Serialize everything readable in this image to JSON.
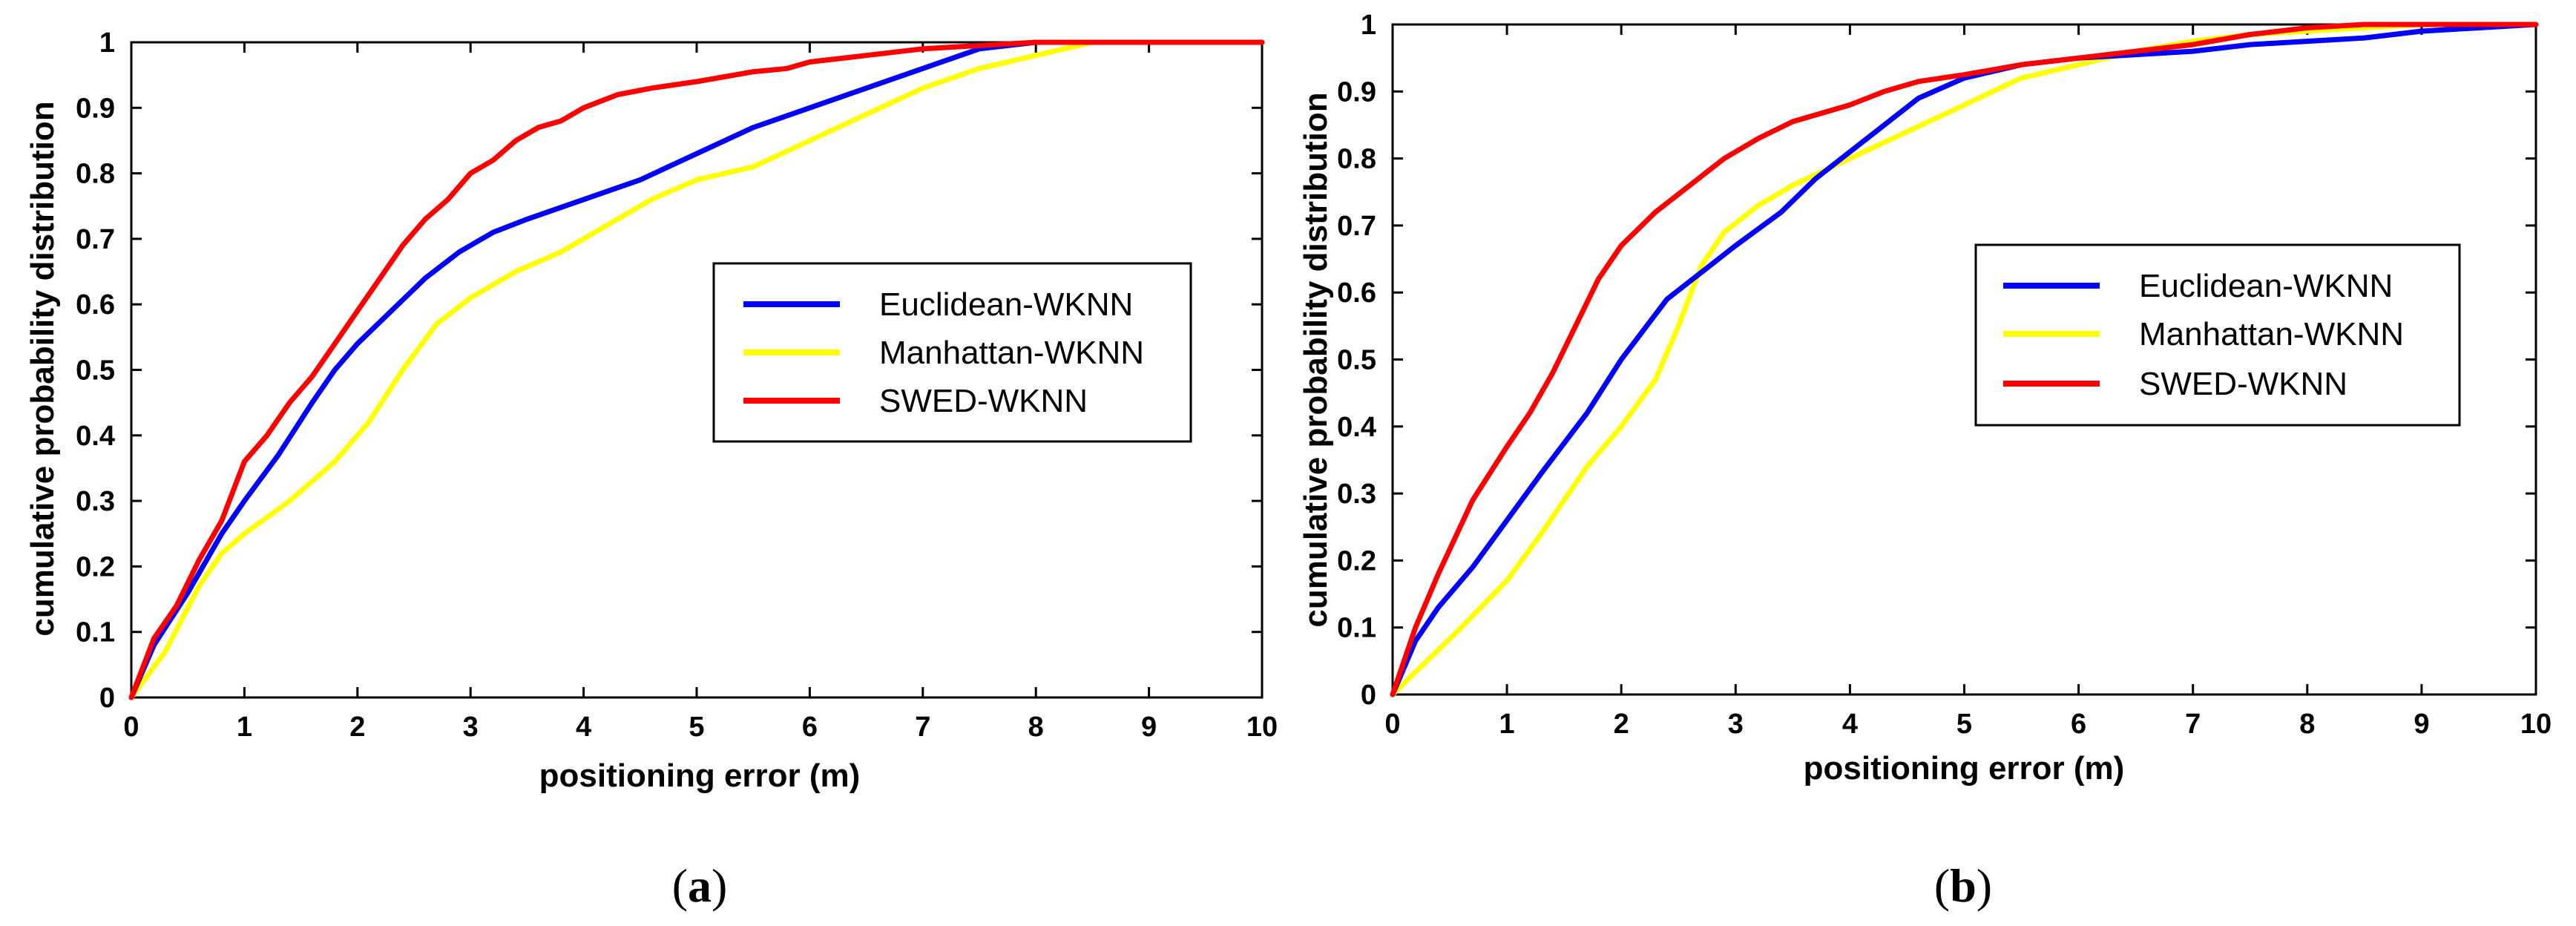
{
  "chart_data": [
    {
      "type": "line",
      "panel_label": "a",
      "title": "",
      "xlabel": "positioning error (m)",
      "ylabel": "cumulative probability distribution",
      "xlim": [
        0,
        10
      ],
      "ylim": [
        0,
        1
      ],
      "xticks": [
        "0",
        "1",
        "2",
        "3",
        "4",
        "5",
        "6",
        "7",
        "8",
        "9",
        "10"
      ],
      "yticks": [
        "0",
        "0.1",
        "0.2",
        "0.3",
        "0.4",
        "0.5",
        "0.6",
        "0.7",
        "0.8",
        "0.9",
        "1"
      ],
      "grid": false,
      "legend_position": "center-right",
      "series": [
        {
          "name": "Euclidean-WKNN",
          "color": "#0000ff",
          "x": [
            0,
            0.2,
            0.5,
            0.8,
            1.0,
            1.3,
            1.6,
            1.8,
            2.0,
            2.3,
            2.6,
            2.9,
            3.2,
            3.5,
            4.0,
            4.5,
            5.0,
            5.5,
            6.0,
            6.5,
            7.0,
            7.5,
            8.0,
            8.5,
            9.0,
            10.0
          ],
          "y": [
            0,
            0.08,
            0.16,
            0.25,
            0.3,
            0.37,
            0.45,
            0.5,
            0.54,
            0.59,
            0.64,
            0.68,
            0.71,
            0.73,
            0.76,
            0.79,
            0.83,
            0.87,
            0.9,
            0.93,
            0.96,
            0.99,
            1.0,
            1.0,
            1.0,
            1.0
          ]
        },
        {
          "name": "Manhattan-WKNN",
          "color": "#ffff00",
          "x": [
            0,
            0.3,
            0.6,
            0.8,
            1.0,
            1.4,
            1.8,
            2.1,
            2.4,
            2.7,
            3.0,
            3.4,
            3.8,
            4.2,
            4.6,
            5.0,
            5.5,
            6.0,
            6.5,
            7.0,
            7.5,
            8.0,
            8.5,
            9.0,
            10.0
          ],
          "y": [
            0,
            0.07,
            0.17,
            0.22,
            0.25,
            0.3,
            0.36,
            0.42,
            0.5,
            0.57,
            0.61,
            0.65,
            0.68,
            0.72,
            0.76,
            0.79,
            0.81,
            0.85,
            0.89,
            0.93,
            0.96,
            0.98,
            1.0,
            1.0,
            1.0
          ]
        },
        {
          "name": "SWED-WKNN",
          "color": "#ff0000",
          "x": [
            0,
            0.2,
            0.4,
            0.6,
            0.8,
            1.0,
            1.2,
            1.4,
            1.6,
            1.8,
            2.0,
            2.2,
            2.4,
            2.6,
            2.8,
            3.0,
            3.2,
            3.4,
            3.6,
            3.8,
            4.0,
            4.3,
            4.6,
            5.0,
            5.5,
            5.8,
            6.0,
            6.5,
            7.0,
            7.5,
            8.0,
            10.0
          ],
          "y": [
            0,
            0.09,
            0.14,
            0.21,
            0.27,
            0.36,
            0.4,
            0.45,
            0.49,
            0.54,
            0.59,
            0.64,
            0.69,
            0.73,
            0.76,
            0.8,
            0.82,
            0.85,
            0.87,
            0.88,
            0.9,
            0.92,
            0.93,
            0.94,
            0.955,
            0.96,
            0.97,
            0.98,
            0.99,
            0.995,
            1.0,
            1.0
          ]
        }
      ]
    },
    {
      "type": "line",
      "panel_label": "b",
      "title": "",
      "xlabel": "positioning error (m)",
      "ylabel": "cumulative probability distribution",
      "xlim": [
        0,
        10
      ],
      "ylim": [
        0,
        1
      ],
      "xticks": [
        "0",
        "1",
        "2",
        "3",
        "4",
        "5",
        "6",
        "7",
        "8",
        "9",
        "10"
      ],
      "yticks": [
        "0",
        "0.1",
        "0.2",
        "0.3",
        "0.4",
        "0.5",
        "0.6",
        "0.7",
        "0.8",
        "0.9",
        "1"
      ],
      "grid": false,
      "legend_position": "center-right",
      "series": [
        {
          "name": "Euclidean-WKNN",
          "color": "#0000ff",
          "x": [
            0,
            0.2,
            0.4,
            0.7,
            1.0,
            1.3,
            1.7,
            2.0,
            2.4,
            2.7,
            3.0,
            3.4,
            3.7,
            4.0,
            4.3,
            4.6,
            5.0,
            5.5,
            6.0,
            6.5,
            7.0,
            7.5,
            8.0,
            8.5,
            9.0,
            9.5,
            10.0
          ],
          "y": [
            0,
            0.08,
            0.13,
            0.19,
            0.26,
            0.33,
            0.42,
            0.5,
            0.59,
            0.63,
            0.67,
            0.72,
            0.77,
            0.81,
            0.85,
            0.89,
            0.92,
            0.94,
            0.95,
            0.955,
            0.96,
            0.97,
            0.975,
            0.98,
            0.99,
            0.995,
            1.0
          ]
        },
        {
          "name": "Manhattan-WKNN",
          "color": "#ffff00",
          "x": [
            0,
            0.3,
            0.6,
            1.0,
            1.3,
            1.7,
            2.0,
            2.3,
            2.5,
            2.7,
            2.9,
            3.2,
            3.5,
            4.0,
            4.5,
            5.0,
            5.5,
            6.0,
            6.5,
            7.0,
            7.5,
            8.0,
            8.5,
            9.0,
            10.0
          ],
          "y": [
            0,
            0.05,
            0.1,
            0.17,
            0.24,
            0.34,
            0.4,
            0.47,
            0.55,
            0.64,
            0.69,
            0.73,
            0.76,
            0.8,
            0.84,
            0.88,
            0.92,
            0.94,
            0.96,
            0.975,
            0.985,
            0.99,
            0.995,
            1.0,
            1.0
          ]
        },
        {
          "name": "SWED-WKNN",
          "color": "#ff0000",
          "x": [
            0,
            0.2,
            0.4,
            0.7,
            1.0,
            1.2,
            1.4,
            1.6,
            1.8,
            2.0,
            2.3,
            2.6,
            2.9,
            3.2,
            3.5,
            3.8,
            4.0,
            4.3,
            4.6,
            5.0,
            5.5,
            6.0,
            6.5,
            7.0,
            7.5,
            8.0,
            8.5,
            9.0,
            10.0
          ],
          "y": [
            0,
            0.1,
            0.18,
            0.29,
            0.37,
            0.42,
            0.48,
            0.55,
            0.62,
            0.67,
            0.72,
            0.76,
            0.8,
            0.83,
            0.855,
            0.87,
            0.88,
            0.9,
            0.915,
            0.925,
            0.94,
            0.95,
            0.96,
            0.97,
            0.985,
            0.995,
            1.0,
            1.0,
            1.0
          ]
        }
      ]
    }
  ]
}
